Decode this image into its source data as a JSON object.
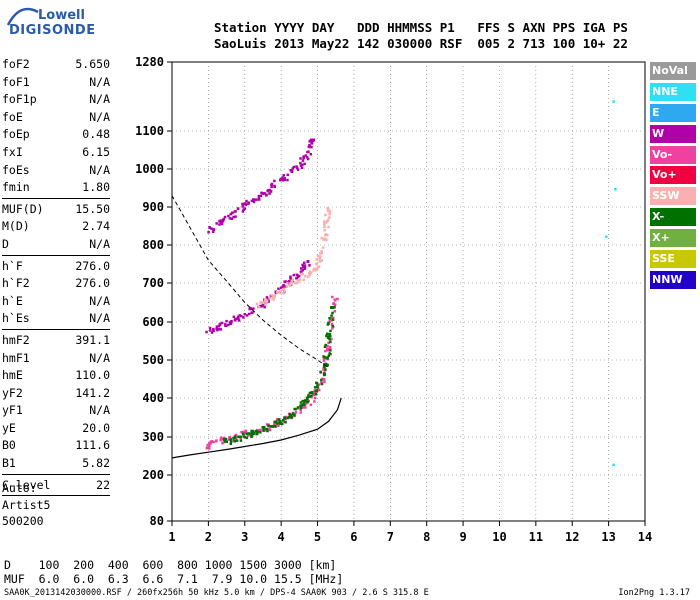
{
  "logo": {
    "line1": "Lowell",
    "line2": "DIGISONDE",
    "color": "#2a5aa8"
  },
  "header": {
    "line1": "Station YYYY DAY   DDD HHMMSS P1   FFS S AXN PPS IGA PS",
    "line2": "SaoLuis 2013 May22 142 030000 RSF  005 2 713 100 10+ 22"
  },
  "params": [
    {
      "name": "foF2",
      "value": "5.650"
    },
    {
      "name": "foF1",
      "value": "N/A"
    },
    {
      "name": "foF1p",
      "value": "N/A"
    },
    {
      "name": "foE",
      "value": "N/A"
    },
    {
      "name": "foEp",
      "value": "0.48"
    },
    {
      "name": "fxI",
      "value": "6.15"
    },
    {
      "name": "foEs",
      "value": "N/A"
    },
    {
      "name": "fmin",
      "value": "1.80"
    },
    {
      "sep": true
    },
    {
      "name": "MUF(D)",
      "value": "15.50"
    },
    {
      "name": "M(D)",
      "value": "2.74"
    },
    {
      "name": "D",
      "value": "N/A"
    },
    {
      "sep": true
    },
    {
      "name": "h`F",
      "value": "276.0"
    },
    {
      "name": "h`F2",
      "value": "276.0"
    },
    {
      "name": "h`E",
      "value": "N/A"
    },
    {
      "name": "h`Es",
      "value": "N/A"
    },
    {
      "sep": true
    },
    {
      "name": "hmF2",
      "value": "391.1"
    },
    {
      "name": "hmF1",
      "value": "N/A"
    },
    {
      "name": "hmE",
      "value": "110.0"
    },
    {
      "name": "yF2",
      "value": "141.2"
    },
    {
      "name": "yF1",
      "value": "N/A"
    },
    {
      "name": "yE",
      "value": "20.0"
    },
    {
      "name": "B0",
      "value": "111.6"
    },
    {
      "name": "B1",
      "value": "5.82"
    },
    {
      "sep": true
    },
    {
      "name": "C-level",
      "value": "22"
    },
    {
      "sep": true
    }
  ],
  "auto": {
    "line1": "Auto:",
    "line2": "Artist5",
    "line3": "500200"
  },
  "distance_row": "D    100  200  400  600  800 1000 1500 3000 [km]",
  "muf_row": "MUF  6.0  6.0  6.3  6.6  7.1  7.9 10.0 15.5 [MHz]",
  "footer": "SAA0K_2013142030000.RSF / 260fx256h 50 kHz 5.0 km / DPS-4 SAA0K 903 / 2.6 S 315.8 E",
  "version": "Ion2Png 1.3.17",
  "legend": [
    {
      "label": "NoVal",
      "color": "#9a9a9a"
    },
    {
      "label": "NNE",
      "color": "#2fe0f0"
    },
    {
      "label": "E",
      "color": "#30a8f0"
    },
    {
      "label": "W",
      "color": "#b000a8"
    },
    {
      "label": "Vo-",
      "color": "#f040a0"
    },
    {
      "label": "Vo+",
      "color": "#f00040"
    },
    {
      "label": "SSW",
      "color": "#f8b0b0"
    },
    {
      "label": "X-",
      "color": "#007000"
    },
    {
      "label": "X+",
      "color": "#70b040"
    },
    {
      "label": "SSE",
      "color": "#c8c800"
    },
    {
      "label": "NNW",
      "color": "#2000c8"
    }
  ],
  "chart_data": {
    "type": "scatter",
    "x_ticks": [
      "1",
      "2",
      "3",
      "4",
      "5",
      "6",
      "7",
      "8",
      "9",
      "10",
      "11",
      "12",
      "13",
      "14"
    ],
    "y_ticks": [
      "80",
      "200",
      "300",
      "400",
      "500",
      "600",
      "700",
      "800",
      "900",
      "1000",
      "1100",
      "1280"
    ],
    "xlim": [
      1,
      14
    ],
    "ylim": [
      80,
      1280
    ],
    "grid": true,
    "traces": [
      {
        "name": "F2 o-trace",
        "color": "#f040a0",
        "points": [
          [
            1.9,
            280
          ],
          [
            2.2,
            290
          ],
          [
            2.6,
            300
          ],
          [
            3.0,
            310
          ],
          [
            3.4,
            320
          ],
          [
            3.8,
            335
          ],
          [
            4.2,
            355
          ],
          [
            4.6,
            380
          ],
          [
            4.9,
            410
          ],
          [
            5.1,
            450
          ],
          [
            5.25,
            520
          ],
          [
            5.35,
            600
          ],
          [
            5.45,
            660
          ]
        ]
      },
      {
        "name": "F2 x-trace",
        "color": "#007000",
        "points": [
          [
            2.4,
            290
          ],
          [
            2.8,
            300
          ],
          [
            3.2,
            312
          ],
          [
            3.6,
            325
          ],
          [
            4.0,
            345
          ],
          [
            4.4,
            370
          ],
          [
            4.7,
            400
          ],
          [
            5.0,
            440
          ],
          [
            5.2,
            500
          ],
          [
            5.3,
            570
          ],
          [
            5.35,
            640
          ]
        ]
      },
      {
        "name": "2F o-trace",
        "color": "#b000a8",
        "points": [
          [
            1.9,
            575
          ],
          [
            2.3,
            590
          ],
          [
            2.7,
            610
          ],
          [
            3.1,
            630
          ],
          [
            3.5,
            650
          ],
          [
            3.9,
            680
          ],
          [
            4.2,
            705
          ],
          [
            4.5,
            730
          ],
          [
            4.7,
            760
          ]
        ]
      },
      {
        "name": "2F fringe",
        "color": "#f8b0b0",
        "points": [
          [
            3.3,
            640
          ],
          [
            3.7,
            665
          ],
          [
            4.1,
            690
          ],
          [
            4.5,
            715
          ],
          [
            4.9,
            740
          ],
          [
            5.1,
            780
          ],
          [
            5.2,
            850
          ],
          [
            5.25,
            900
          ]
        ]
      },
      {
        "name": "3F trace",
        "color": "#b000a8",
        "points": [
          [
            2.0,
            840
          ],
          [
            2.4,
            870
          ],
          [
            2.8,
            895
          ],
          [
            3.2,
            920
          ],
          [
            3.6,
            945
          ],
          [
            4.0,
            975
          ],
          [
            4.4,
            1005
          ],
          [
            4.7,
            1040
          ],
          [
            4.8,
            1080
          ]
        ]
      },
      {
        "name": "E/W scatter",
        "color": "#2fe0f0",
        "points": [
          [
            13.1,
            1180
          ],
          [
            13.15,
            950
          ],
          [
            12.9,
            825
          ],
          [
            13.1,
            230
          ]
        ]
      }
    ],
    "virtual_profile": [
      [
        1,
        245
      ],
      [
        1.5,
        253
      ],
      [
        2,
        260
      ],
      [
        2.5,
        267
      ],
      [
        3,
        275
      ],
      [
        3.5,
        283
      ],
      [
        4,
        292
      ],
      [
        4.5,
        305
      ],
      [
        5,
        320
      ],
      [
        5.3,
        340
      ],
      [
        5.55,
        370
      ],
      [
        5.65,
        400
      ]
    ],
    "muf_curve": [
      [
        1,
        930
      ],
      [
        1.5,
        845
      ],
      [
        2,
        760
      ],
      [
        2.5,
        705
      ],
      [
        3,
        650
      ],
      [
        3.5,
        605
      ],
      [
        4,
        565
      ],
      [
        4.5,
        530
      ],
      [
        5,
        500
      ],
      [
        5.3,
        480
      ]
    ]
  }
}
